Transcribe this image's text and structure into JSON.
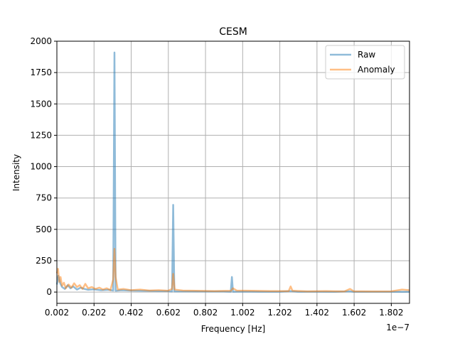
{
  "chart_data": {
    "type": "line",
    "title": "CESM",
    "xlabel": "Frequency [Hz]",
    "ylabel": "Intensity",
    "x_scale_label": "1e−7",
    "xlim": [
      0.002,
      1.9
    ],
    "ylim": [
      -90,
      2000
    ],
    "x_tick_values": [
      0.002,
      0.202,
      0.402,
      0.602,
      0.802,
      1.002,
      1.202,
      1.402,
      1.602,
      1.802
    ],
    "x_tick_labels": [
      "0.002",
      "0.202",
      "0.402",
      "0.602",
      "0.802",
      "1.002",
      "1.202",
      "1.402",
      "1.602",
      "1.802"
    ],
    "y_tick_values": [
      0,
      250,
      500,
      750,
      1000,
      1250,
      1500,
      1750,
      2000
    ],
    "y_tick_labels": [
      "0",
      "250",
      "500",
      "750",
      "1000",
      "1250",
      "1500",
      "1750",
      "2000"
    ],
    "grid": true,
    "legend_position": "top-right",
    "series": [
      {
        "name": "Raw",
        "color": "#1f77b4",
        "alpha": 0.5,
        "points": [
          [
            0.002,
            60
          ],
          [
            0.01,
            130
          ],
          [
            0.02,
            70
          ],
          [
            0.03,
            40
          ],
          [
            0.045,
            25
          ],
          [
            0.06,
            55
          ],
          [
            0.075,
            30
          ],
          [
            0.09,
            45
          ],
          [
            0.11,
            20
          ],
          [
            0.13,
            35
          ],
          [
            0.15,
            25
          ],
          [
            0.17,
            18
          ],
          [
            0.2,
            22
          ],
          [
            0.24,
            15
          ],
          [
            0.28,
            18
          ],
          [
            0.305,
            12
          ],
          [
            0.312,
            1910
          ],
          [
            0.318,
            10
          ],
          [
            0.35,
            15
          ],
          [
            0.4,
            12
          ],
          [
            0.45,
            10
          ],
          [
            0.5,
            9
          ],
          [
            0.55,
            8
          ],
          [
            0.6,
            8
          ],
          [
            0.622,
            5
          ],
          [
            0.628,
            695
          ],
          [
            0.634,
            6
          ],
          [
            0.7,
            6
          ],
          [
            0.8,
            5
          ],
          [
            0.9,
            5
          ],
          [
            0.938,
            3
          ],
          [
            0.944,
            120
          ],
          [
            0.95,
            3
          ],
          [
            1.0,
            4
          ],
          [
            1.1,
            3
          ],
          [
            1.2,
            3
          ],
          [
            1.26,
            8
          ],
          [
            1.3,
            3
          ],
          [
            1.4,
            3
          ],
          [
            1.5,
            2
          ],
          [
            1.58,
            6
          ],
          [
            1.6,
            2
          ],
          [
            1.7,
            2
          ],
          [
            1.8,
            2
          ],
          [
            1.9,
            2
          ]
        ]
      },
      {
        "name": "Anomaly",
        "color": "#ff7f0e",
        "alpha": 0.5,
        "points": [
          [
            0.002,
            150
          ],
          [
            0.008,
            185
          ],
          [
            0.015,
            80
          ],
          [
            0.022,
            120
          ],
          [
            0.03,
            50
          ],
          [
            0.04,
            75
          ],
          [
            0.05,
            30
          ],
          [
            0.065,
            60
          ],
          [
            0.08,
            35
          ],
          [
            0.095,
            70
          ],
          [
            0.11,
            40
          ],
          [
            0.125,
            55
          ],
          [
            0.14,
            25
          ],
          [
            0.155,
            65
          ],
          [
            0.17,
            30
          ],
          [
            0.19,
            40
          ],
          [
            0.21,
            25
          ],
          [
            0.23,
            35
          ],
          [
            0.25,
            20
          ],
          [
            0.27,
            30
          ],
          [
            0.29,
            15
          ],
          [
            0.305,
            100
          ],
          [
            0.312,
            345
          ],
          [
            0.318,
            120
          ],
          [
            0.33,
            20
          ],
          [
            0.36,
            25
          ],
          [
            0.4,
            15
          ],
          [
            0.45,
            20
          ],
          [
            0.5,
            12
          ],
          [
            0.55,
            15
          ],
          [
            0.6,
            10
          ],
          [
            0.622,
            25
          ],
          [
            0.628,
            145
          ],
          [
            0.636,
            20
          ],
          [
            0.68,
            12
          ],
          [
            0.75,
            10
          ],
          [
            0.85,
            8
          ],
          [
            0.94,
            10
          ],
          [
            0.95,
            30
          ],
          [
            0.97,
            12
          ],
          [
            1.05,
            10
          ],
          [
            1.15,
            8
          ],
          [
            1.25,
            8
          ],
          [
            1.26,
            45
          ],
          [
            1.27,
            10
          ],
          [
            1.35,
            6
          ],
          [
            1.45,
            8
          ],
          [
            1.55,
            5
          ],
          [
            1.58,
            25
          ],
          [
            1.6,
            6
          ],
          [
            1.7,
            5
          ],
          [
            1.8,
            6
          ],
          [
            1.86,
            20
          ],
          [
            1.9,
            15
          ]
        ]
      }
    ]
  }
}
